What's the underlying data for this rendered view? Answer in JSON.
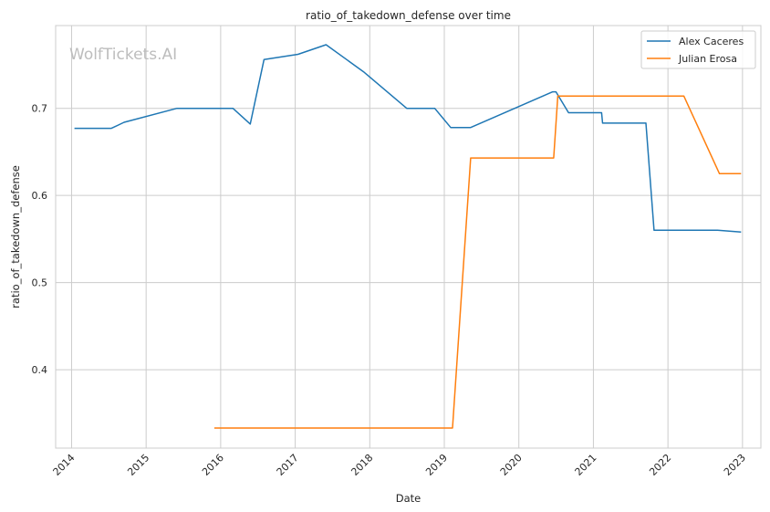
{
  "chart_data": {
    "type": "line",
    "title": "ratio_of_takedown_defense over time",
    "xlabel": "Date",
    "ylabel": "ratio_of_takedown_defense",
    "x_ticks": [
      "2014",
      "2015",
      "2016",
      "2017",
      "2018",
      "2019",
      "2020",
      "2021",
      "2022",
      "2023"
    ],
    "y_ticks": [
      "0.4",
      "0.5",
      "0.6",
      "0.7"
    ],
    "xlim": [
      "2013-10-15",
      "2023-04-01"
    ],
    "ylim": [
      0.31,
      0.795
    ],
    "grid": true,
    "legend_position": "top-right",
    "watermark": "WolfTickets.AI",
    "series": [
      {
        "name": "Alex Caceres",
        "color": "#1f77b4",
        "points": [
          [
            "2014-01-15",
            0.677
          ],
          [
            "2014-07-15",
            0.677
          ],
          [
            "2014-09-15",
            0.684
          ],
          [
            "2015-06-01",
            0.7
          ],
          [
            "2016-03-01",
            0.7
          ],
          [
            "2016-05-25",
            0.682
          ],
          [
            "2016-08-01",
            0.756
          ],
          [
            "2017-01-15",
            0.762
          ],
          [
            "2017-06-01",
            0.773
          ],
          [
            "2017-12-01",
            0.742
          ],
          [
            "2018-07-01",
            0.7
          ],
          [
            "2018-11-15",
            0.7
          ],
          [
            "2019-02-01",
            0.678
          ],
          [
            "2019-05-10",
            0.678
          ],
          [
            "2020-06-15",
            0.719
          ],
          [
            "2020-07-01",
            0.719
          ],
          [
            "2020-09-01",
            0.695
          ],
          [
            "2021-02-10",
            0.695
          ],
          [
            "2021-02-15",
            0.683
          ],
          [
            "2021-09-15",
            0.683
          ],
          [
            "2021-10-25",
            0.56
          ],
          [
            "2022-09-01",
            0.56
          ],
          [
            "2022-12-25",
            0.558
          ]
        ]
      },
      {
        "name": "Julian Erosa",
        "color": "#ff7f0e",
        "points": [
          [
            "2015-12-01",
            0.333
          ],
          [
            "2019-02-10",
            0.333
          ],
          [
            "2019-05-10",
            0.643
          ],
          [
            "2020-06-20",
            0.643
          ],
          [
            "2020-07-10",
            0.714
          ],
          [
            "2022-03-20",
            0.714
          ],
          [
            "2022-09-10",
            0.625
          ],
          [
            "2022-12-25",
            0.625
          ]
        ]
      }
    ]
  }
}
